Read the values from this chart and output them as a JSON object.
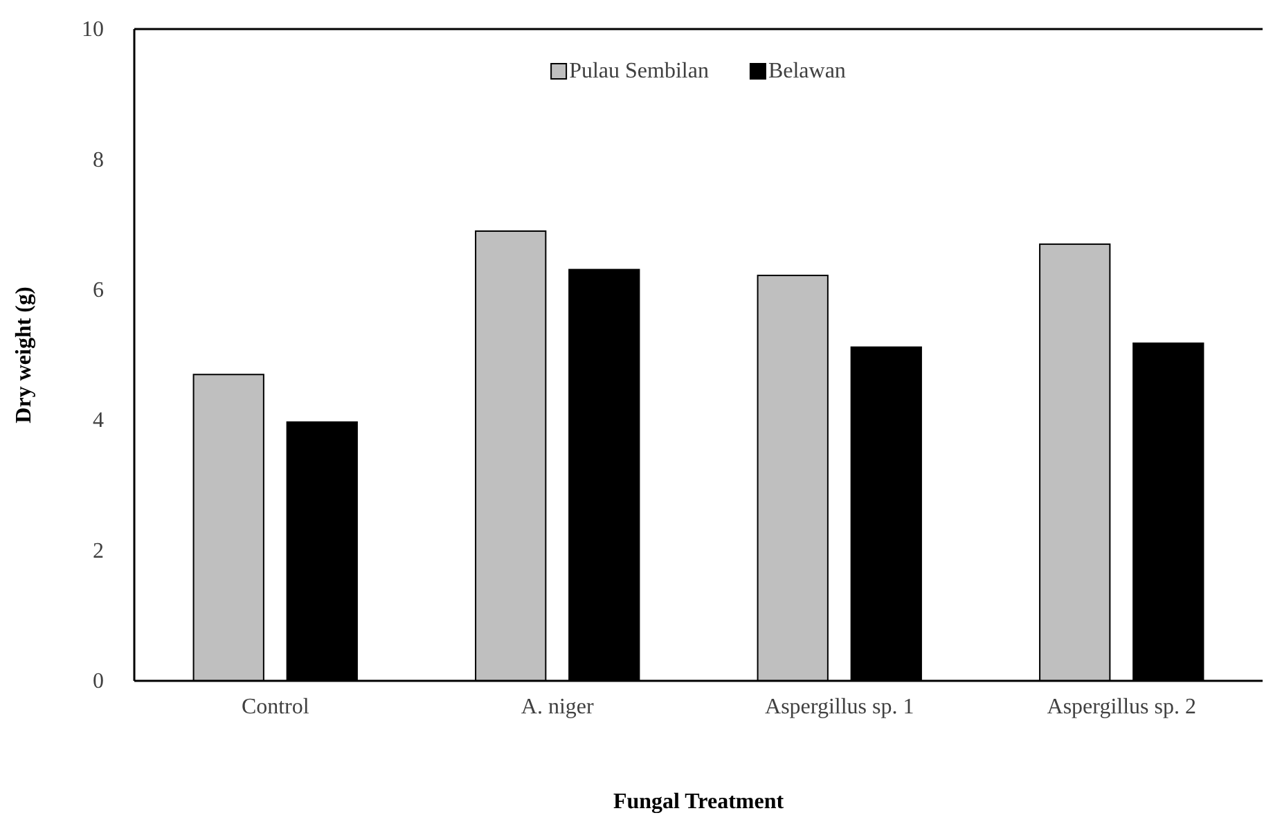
{
  "chart_data": {
    "type": "bar",
    "xlabel": "Fungal Treatment",
    "ylabel": "Dry weight (g)",
    "categories": [
      "Control",
      "A. niger",
      "Aspergillus sp. 1",
      "Aspergillus sp. 2"
    ],
    "series": [
      {
        "name": "Pulau Sembilan",
        "color": "#bfbfbf",
        "values": [
          4.7,
          6.9,
          6.22,
          6.7
        ]
      },
      {
        "name": "Belawan",
        "color": "#000000",
        "values": [
          3.97,
          6.31,
          5.12,
          5.18
        ]
      }
    ],
    "ylim": [
      0,
      10
    ],
    "yticks": [
      0,
      2,
      4,
      6,
      8,
      10
    ],
    "grid": false,
    "legend": "top"
  }
}
